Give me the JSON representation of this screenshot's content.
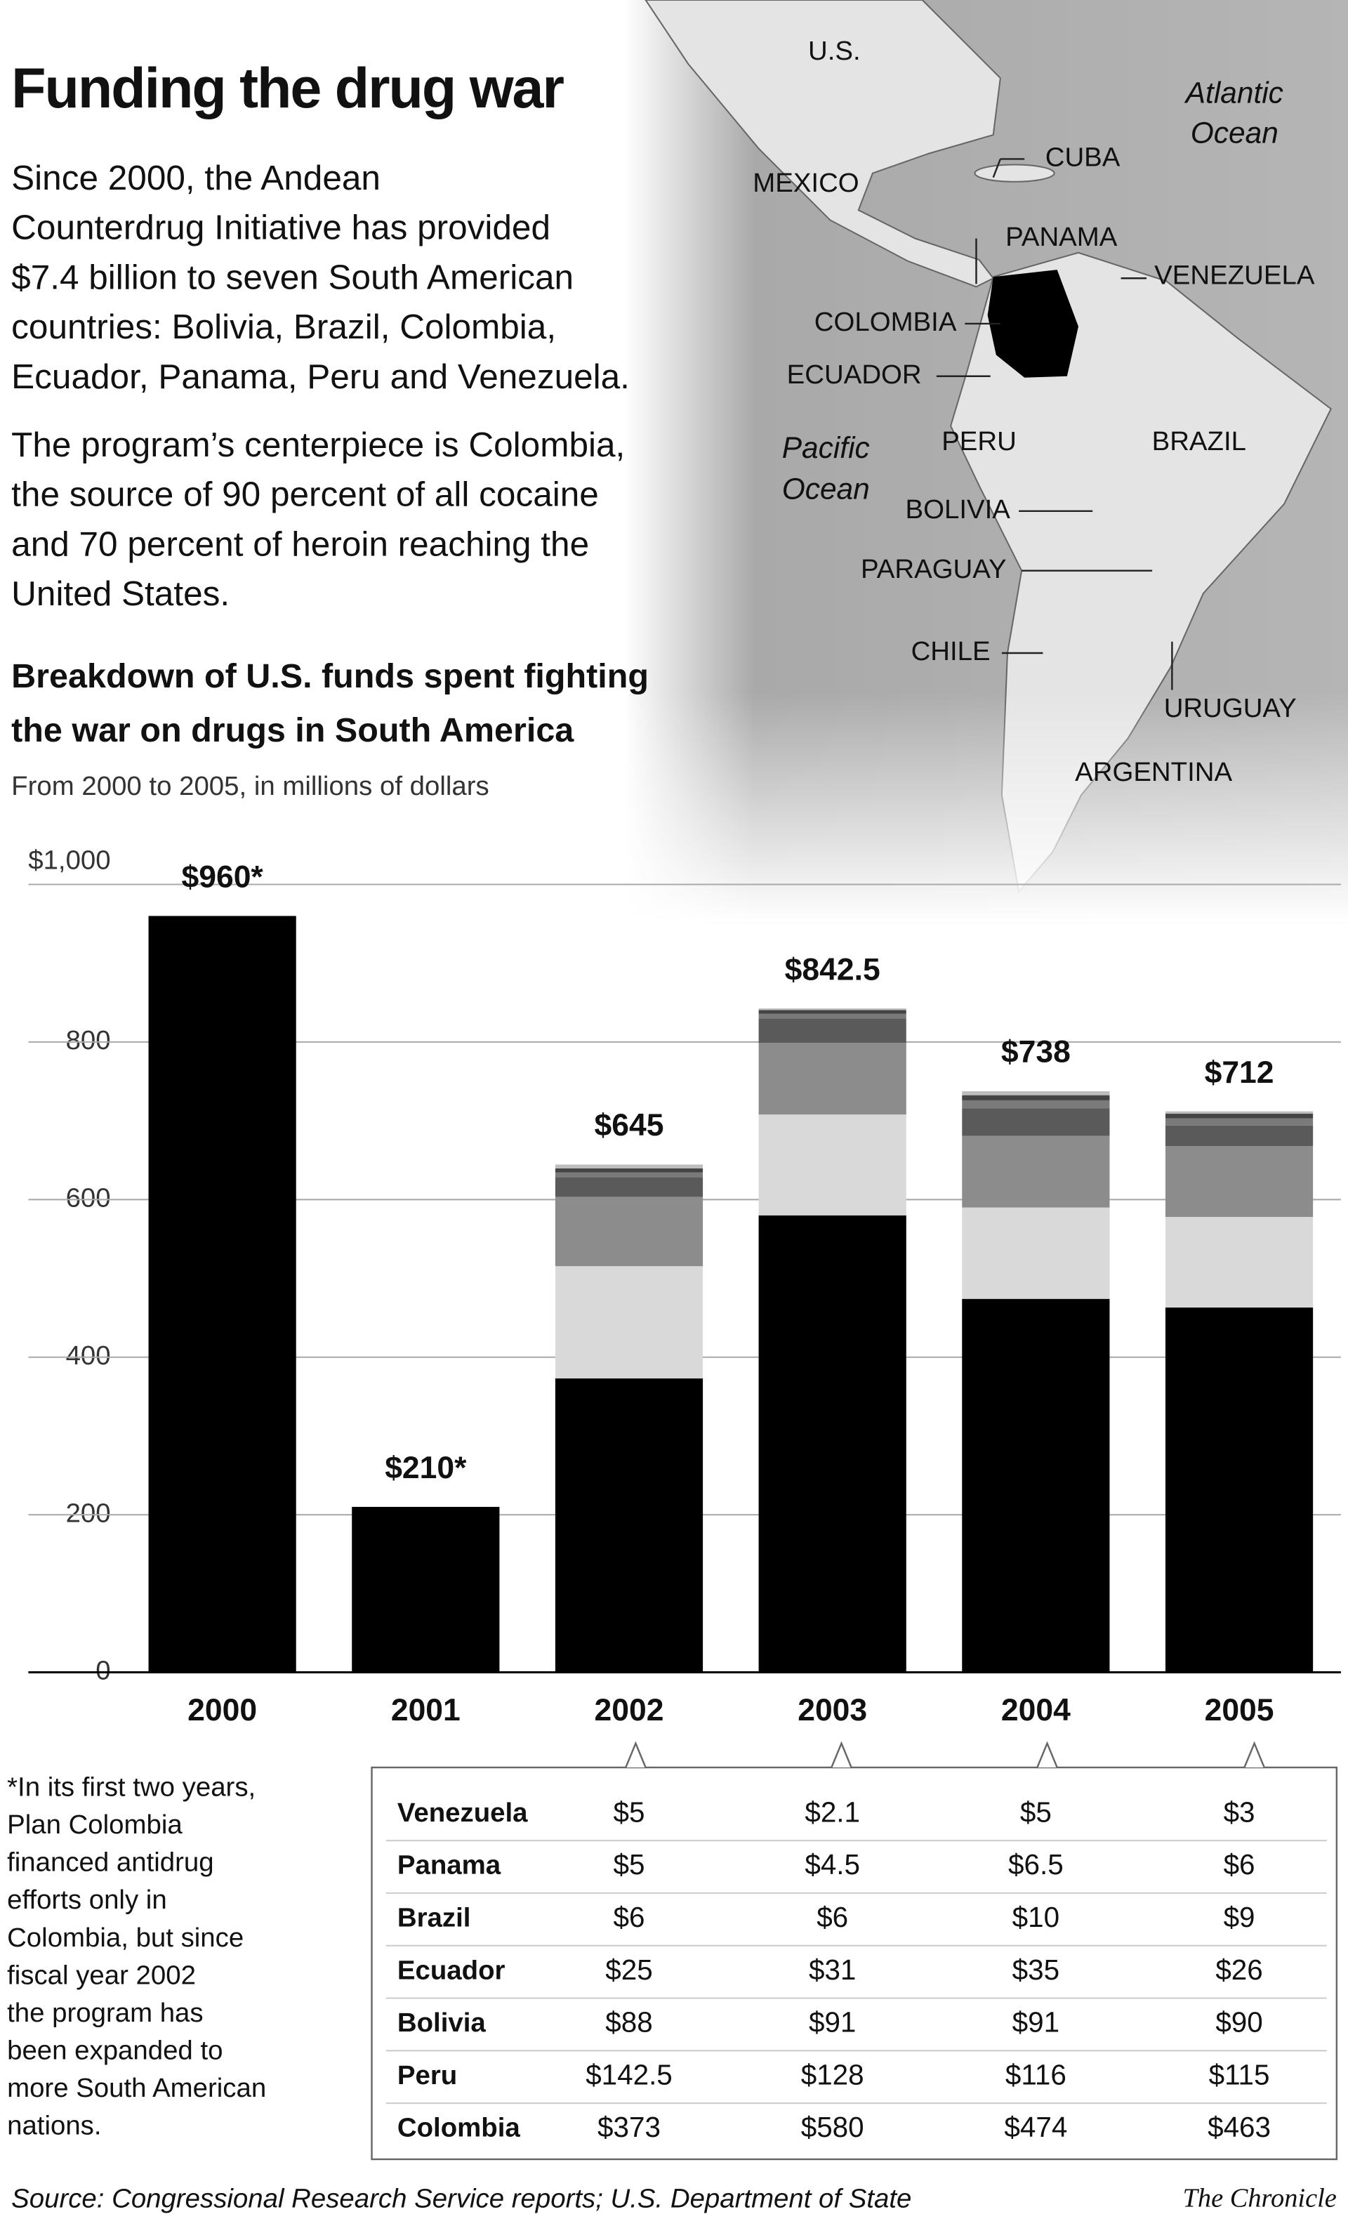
{
  "header": {
    "title": "Funding the drug war",
    "intro": [
      "Since 2000, the Andean",
      "Counterdrug Initiative has provided",
      "$7.4 billion to seven South American",
      "countries: Bolivia, Brazil, Colombia,",
      "Ecuador, Panama, Peru and Venezuela."
    ],
    "intro2": [
      "The program’s centerpiece is Colombia,",
      "the source of 90 percent of all cocaine",
      "and 70 percent of heroin reaching the",
      "United States."
    ]
  },
  "map": {
    "labels": [
      "U.S.",
      "CUBA",
      "MEXICO",
      "PANAMA",
      "VENEZUELA",
      "COLOMBIA",
      "ECUADOR",
      "PERU",
      "BRAZIL",
      "BOLIVIA",
      "PARAGUAY",
      "CHILE",
      "URUGUAY",
      "ARGENTINA"
    ],
    "atlantic": [
      "Atlantic",
      "Ocean"
    ],
    "pacific": [
      "Pacific",
      "Ocean"
    ]
  },
  "chart_data": {
    "type": "bar",
    "stacked": true,
    "title": [
      "Breakdown of U.S. funds spent fighting",
      "the war on drugs in South America"
    ],
    "subtitle": "From 2000 to 2005, in millions of dollars",
    "categories": [
      "2000",
      "2001",
      "2002",
      "2003",
      "2004",
      "2005"
    ],
    "ylim": [
      0,
      1000
    ],
    "yticks": [
      0,
      200,
      400,
      600,
      800,
      {
        "value": 1000,
        "label": "$1,000"
      }
    ],
    "grid": true,
    "series": [
      {
        "name": "Colombia",
        "color": "#000000",
        "values": [
          960,
          210,
          373,
          580,
          474,
          463
        ],
        "value_labels": [
          null,
          null,
          "$373",
          "$580",
          "$474",
          "$463"
        ]
      },
      {
        "name": "Peru",
        "color": "#d9d9d9",
        "values": [
          null,
          null,
          142.5,
          128,
          116,
          115
        ],
        "value_labels": [
          null,
          null,
          "$142.5",
          "$128",
          "$116",
          "$115"
        ]
      },
      {
        "name": "Bolivia",
        "color": "#8c8c8c",
        "values": [
          null,
          null,
          88,
          91,
          91,
          90
        ],
        "value_labels": [
          null,
          null,
          "$88",
          "$91",
          "$91",
          "$90"
        ]
      },
      {
        "name": "Ecuador",
        "color": "#5a5a5a",
        "values": [
          null,
          null,
          25,
          31,
          35,
          26
        ],
        "value_labels": [
          null,
          null,
          "$25",
          "$31",
          "$35",
          "$26"
        ]
      },
      {
        "name": "Brazil",
        "color": "#7a7a7a",
        "values": [
          null,
          null,
          6,
          6,
          10,
          9
        ],
        "value_labels": [
          null,
          null,
          "$6",
          "$6",
          "$10",
          "$9"
        ]
      },
      {
        "name": "Panama",
        "color": "#444444",
        "values": [
          null,
          null,
          5,
          4.5,
          6.5,
          6
        ],
        "value_labels": [
          null,
          null,
          "$5",
          "$4.5",
          "$6.5",
          "$6"
        ]
      },
      {
        "name": "Venezuela",
        "color": "#bdbdbd",
        "values": [
          null,
          null,
          5,
          2.1,
          5,
          3
        ],
        "value_labels": [
          null,
          null,
          "$5",
          "$2.1",
          "$5",
          "$3"
        ]
      }
    ],
    "totals": [
      960,
      210,
      645,
      842.5,
      738,
      712
    ],
    "total_labels": [
      "$960*",
      "$210*",
      "$645",
      "$842.5",
      "$738",
      "$712"
    ]
  },
  "footnote": [
    "*In its first two years,",
    "Plan Colombia",
    "financed antidrug",
    "efforts only in",
    "Colombia, but since",
    "fiscal year 2002",
    "the program has",
    "been expanded to",
    "more South American",
    "nations."
  ],
  "source": "Source: Congressional Research Service reports; U.S. Department of State",
  "credit": "The Chronicle"
}
